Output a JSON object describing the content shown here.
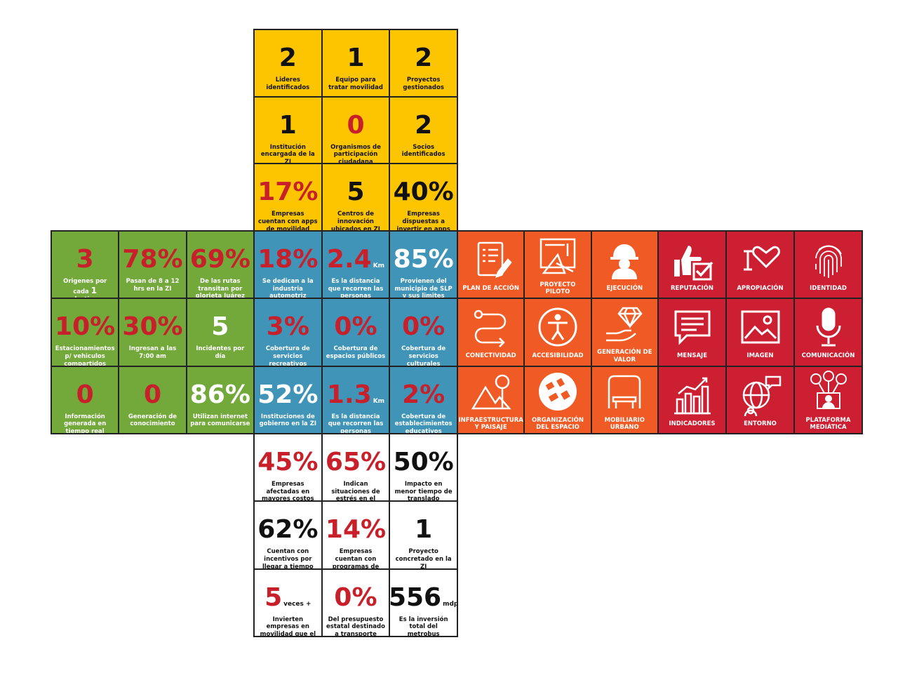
{
  "top": [
    {
      "value": "2",
      "caption": "Lideres identificados",
      "color": "blk"
    },
    {
      "value": "1",
      "caption": "Equipo para tratar movilidad",
      "color": "blk"
    },
    {
      "value": "2",
      "caption": "Proyectos gestionados",
      "color": "blk"
    },
    {
      "value": "1",
      "caption": "Institución encargada de la ZI",
      "color": "blk"
    },
    {
      "value": "0",
      "caption": "Organismos de participación ciudadana",
      "color": "red"
    },
    {
      "value": "2",
      "caption": "Socios identificados",
      "color": "blk"
    },
    {
      "value": "17%",
      "caption": "Empresas cuentan con apps de movilidad",
      "color": "red"
    },
    {
      "value": "5",
      "caption": "Centros de innovación ubicados en ZI",
      "color": "blk"
    },
    {
      "value": "40%",
      "caption": "Empresas dispuestas a invertir en apps",
      "color": "blk"
    }
  ],
  "left": [
    {
      "value": "3",
      "caption": "Origenes por cada",
      "caption_num": "1",
      "caption_end": "destino",
      "color": "red"
    },
    {
      "value": "78%",
      "caption": "Pasan de 8 a 12 hrs en la ZI",
      "color": "red"
    },
    {
      "value": "69%",
      "caption": "De las rutas transitan por glorieta Juárez",
      "color": "red"
    },
    {
      "value": "10%",
      "caption": "Estacionamientos p/ vehiculos compartidos",
      "color": "red"
    },
    {
      "value": "30%",
      "caption": "Ingresan a las 7:00 am",
      "color": "red"
    },
    {
      "value": "5",
      "caption": "Incidentes por día",
      "color": "wht"
    },
    {
      "value": "0",
      "caption": "Información generada en tiempo real",
      "color": "red"
    },
    {
      "value": "0",
      "caption": "Generación de conocimiento",
      "color": "red"
    },
    {
      "value": "86%",
      "caption": "Utilizan internet para comunicarse",
      "color": "wht"
    }
  ],
  "center": [
    {
      "value": "18%",
      "caption": "Se dedican a la industria automotriz",
      "color": "red"
    },
    {
      "value": "2.4",
      "suffix": "Km",
      "caption": "Es la distancia que recorren las personas",
      "color": "red"
    },
    {
      "value": "85%",
      "caption": "Provienen del municipio de SLP y sus limites",
      "color": "wht"
    },
    {
      "value": "3%",
      "caption": "Cobertura de servicios recreativos",
      "color": "red"
    },
    {
      "value": "0%",
      "caption": "Cobertura de espacios públicos",
      "color": "red"
    },
    {
      "value": "0%",
      "caption": "Cobertura de servicios culturales",
      "color": "red"
    },
    {
      "value": "52%",
      "caption": "Instituciones de gobierno en la ZI",
      "color": "wht"
    },
    {
      "value": "1.3",
      "suffix": "Km",
      "caption": "Es la distancia que recorren las personas",
      "color": "red"
    },
    {
      "value": "2%",
      "caption": "Cobertura de establecimientos educativos",
      "color": "red"
    }
  ],
  "orange": [
    {
      "label": "PLAN DE ACCIÓN",
      "icon": "clipboard-icon"
    },
    {
      "label": "PROYECTO PILOTO",
      "icon": "blueprint-icon"
    },
    {
      "label": "EJECUCIÓN",
      "icon": "worker-icon"
    },
    {
      "label": "CONECTIVIDAD",
      "icon": "route-icon"
    },
    {
      "label": "ACCESIBILIDAD",
      "icon": "accessibility-icon"
    },
    {
      "label": "GENERACIÓN DE VALOR",
      "icon": "diamond-hand-icon"
    },
    {
      "label": "INFRAESTRUCTURA Y PAISAJE",
      "icon": "landscape-icon"
    },
    {
      "label": "ORGANIZACIÓN DEL ESPACIO",
      "icon": "map-icon"
    },
    {
      "label": "MOBILIARIO URBANO",
      "icon": "bus-stop-icon"
    }
  ],
  "red": [
    {
      "label": "REPUTACIÓN",
      "icon": "thumbs-check-icon"
    },
    {
      "label": "APROPIACIÓN",
      "icon": "i-love-icon"
    },
    {
      "label": "IDENTIDAD",
      "icon": "fingerprint-icon"
    },
    {
      "label": "MENSAJE",
      "icon": "message-icon"
    },
    {
      "label": "IMAGEN",
      "icon": "image-icon"
    },
    {
      "label": "COMUNICACIÓN",
      "icon": "microphone-icon"
    },
    {
      "label": "INDICADORES",
      "icon": "bar-chart-icon"
    },
    {
      "label": "ENTORNO",
      "icon": "globe-chat-icon"
    },
    {
      "label": "PLATAFORMA MEDIÁTICA",
      "icon": "network-icon"
    }
  ],
  "bottom": [
    {
      "value": "45%",
      "caption": "Empresas afectadas en mayores costos de producción",
      "color": "red"
    },
    {
      "value": "65%",
      "caption": "Indican situaciones de estrés en el personal",
      "color": "red"
    },
    {
      "value": "50%",
      "caption": "Impacto en menor tiempo de translado",
      "color": "blk"
    },
    {
      "value": "62%",
      "caption": "Cuentan con incentivos por llegar a tiempo",
      "color": "blk"
    },
    {
      "value": "14%",
      "caption": "Empresas cuentan con programas de apoyo",
      "color": "red"
    },
    {
      "value": "1",
      "caption": "Proyecto concretado en la ZI",
      "color": "blk"
    },
    {
      "value": "5",
      "suffix": "veces +",
      "caption": "Invierten empresas en movilidad que el gobierno del estado",
      "color": "red"
    },
    {
      "value": "0%",
      "caption": "Del presupuesto estatal destinado a transporte público",
      "color": "red"
    },
    {
      "value": "556",
      "suffix": "mdp",
      "caption": "Es la inversión total del metrobus",
      "color": "blk"
    }
  ]
}
